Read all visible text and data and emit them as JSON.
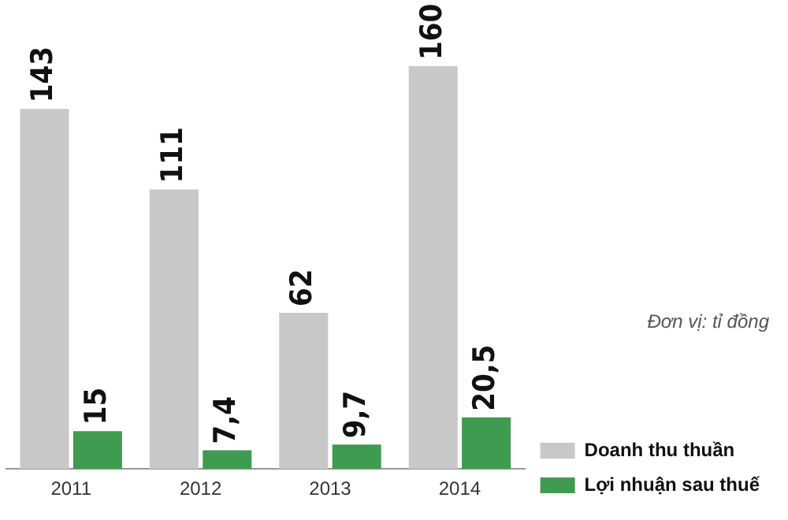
{
  "chart_data": {
    "type": "bar",
    "categories": [
      "2011",
      "2012",
      "2013",
      "2014"
    ],
    "series": [
      {
        "name": "Doanh thu thuần",
        "color": "#c8c8c8",
        "values": [
          143,
          111,
          62,
          160
        ],
        "value_labels": [
          "143",
          "111",
          "62",
          "160"
        ]
      },
      {
        "name": "Lợi nhuận sau thuế",
        "color": "#3f9b4f",
        "values": [
          15,
          7.4,
          9.7,
          20.5
        ],
        "value_labels": [
          "15",
          "7,4",
          "9,7",
          "20,5"
        ]
      }
    ],
    "annotations": [
      "Đơn vị: tỉ đồng"
    ],
    "grid": false,
    "legend": "bottom right"
  }
}
